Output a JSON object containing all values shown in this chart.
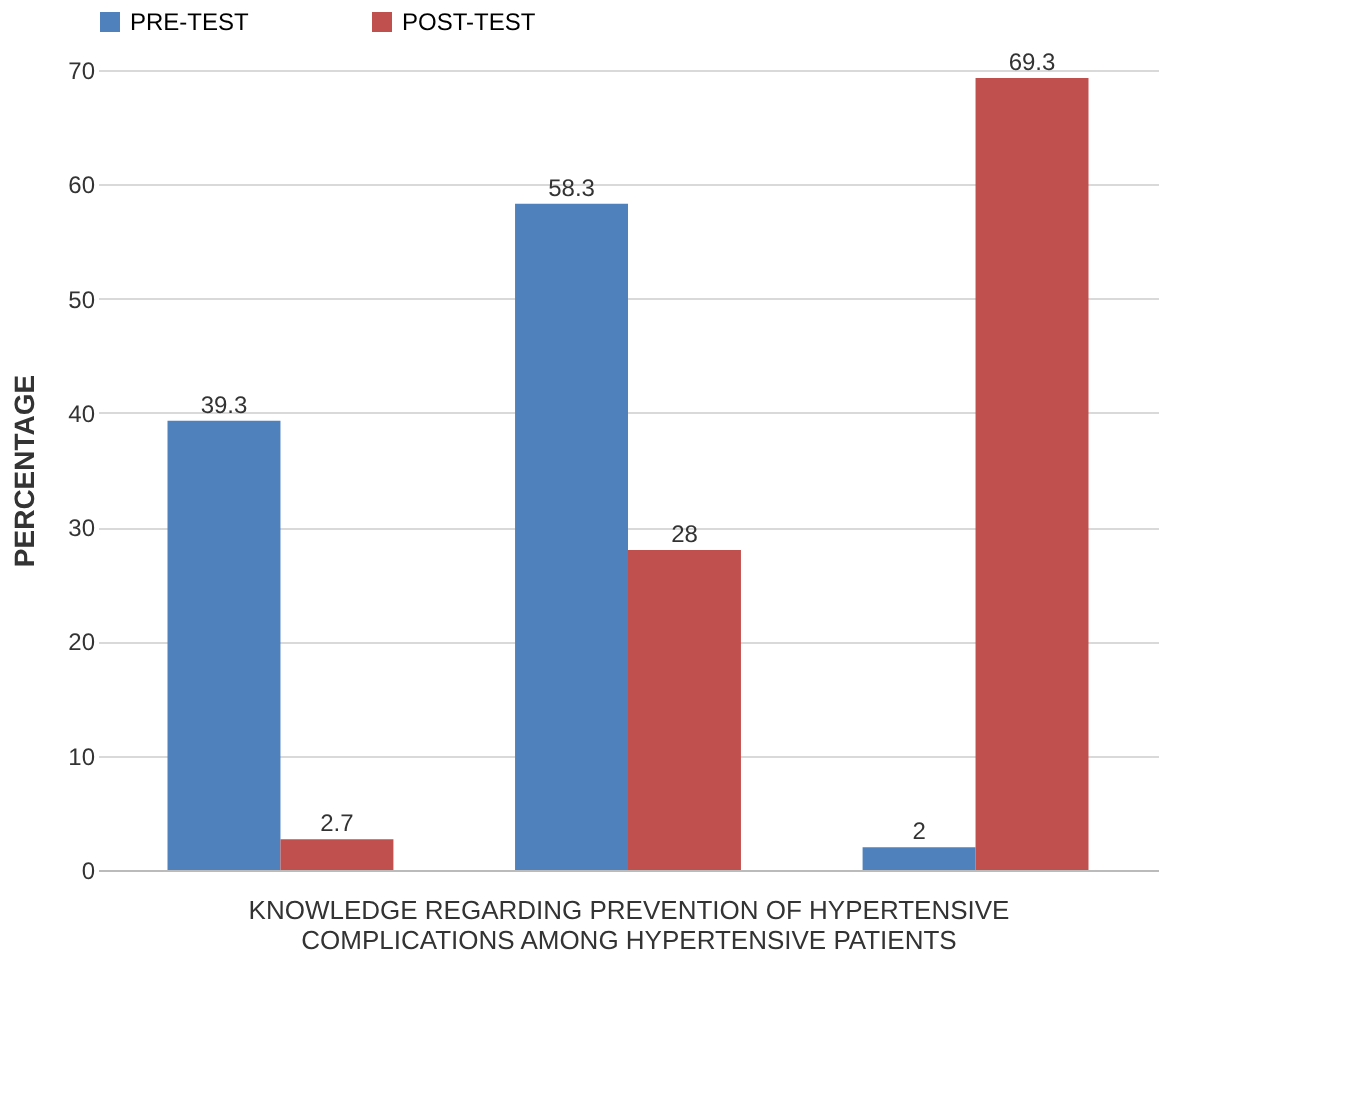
{
  "chart_data": {
    "type": "bar",
    "categories": [
      null,
      null,
      null
    ],
    "series": [
      {
        "name": "PRE-TEST",
        "color": "#4f81bd",
        "values": [
          39.3,
          58.3,
          2
        ]
      },
      {
        "name": "POST-TEST",
        "color": "#c0504d",
        "values": [
          2.7,
          28,
          69.3
        ]
      }
    ],
    "xlabel": "KNOWLEDGE REGARDING PREVENTION OF HYPERTENSIVE COMPLICATIONS AMONG HYPERTENSIVE PATIENTS",
    "ylabel": "PERCENTAGE",
    "ylim": [
      0,
      70
    ],
    "yticks": [
      0,
      10,
      20,
      30,
      40,
      50,
      60,
      70
    ],
    "grid": "y",
    "legend": "top",
    "data_labels": true
  }
}
